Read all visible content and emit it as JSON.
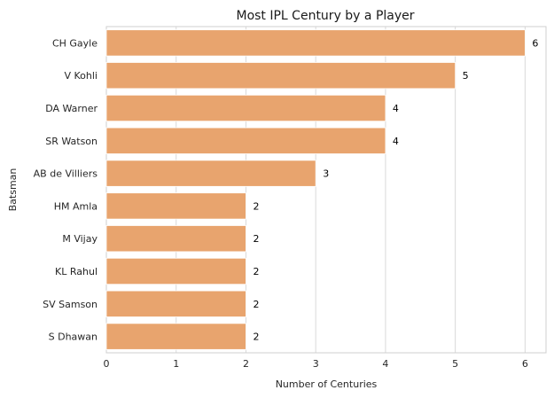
{
  "chart_data": {
    "type": "bar",
    "orientation": "horizontal",
    "title": "Most IPL Century by a Player",
    "xlabel": "Number of Centuries",
    "ylabel": "Batsman",
    "categories": [
      "CH Gayle",
      "V Kohli",
      "DA Warner",
      "SR Watson",
      "AB de Villiers",
      "HM Amla",
      "M Vijay",
      "KL Rahul",
      "SV Samson",
      "S Dhawan"
    ],
    "values": [
      6,
      5,
      4,
      4,
      3,
      2,
      2,
      2,
      2,
      2
    ],
    "xlim": [
      0,
      6.3
    ],
    "xticks": [
      "0",
      "1",
      "2",
      "3",
      "4",
      "5",
      "6"
    ],
    "grid": true,
    "bar_color": "#E8A46E",
    "data_labels": true
  }
}
